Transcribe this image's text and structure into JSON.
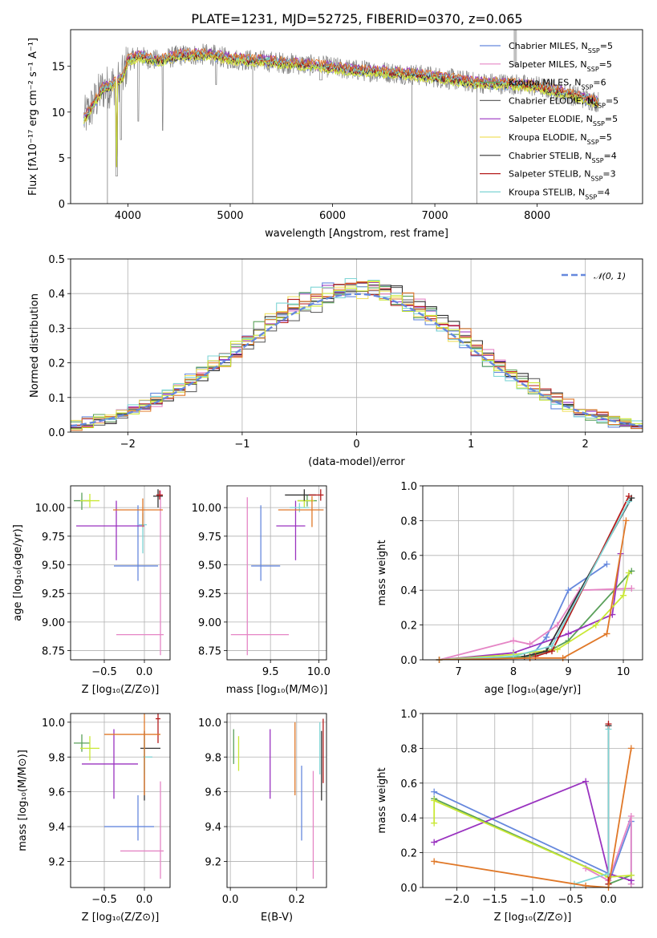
{
  "figure_title": "PLATE=1231, MJD=52725, FIBERID=0370, z=0.065",
  "colors": [
    "#6688dd",
    "#e585c5",
    "#5aa05a",
    "#666666",
    "#9a33c0",
    "#f0e060",
    "#333333",
    "#b51b1b",
    "#7fd5d5",
    "#e07828",
    "#c9e835"
  ],
  "chart_data": [
    {
      "id": "spectrum",
      "type": "line",
      "xlabel": "wavelength [Angstrom, rest frame]",
      "ylabel": "Flux [fλ10⁻¹⁷ erg cm⁻² s⁻¹ A⁻¹]",
      "xlim": [
        3440,
        9030
      ],
      "ylim": [
        0,
        19
      ],
      "xticks": [
        4000,
        5000,
        6000,
        7000,
        8000
      ],
      "yticks": [
        0,
        5,
        10,
        15
      ],
      "grid": false,
      "legend_position": "right",
      "legend": [
        {
          "label": "Chabrier MILES, N",
          "sub": "SSP",
          "tail": "=5",
          "color": "#6688dd"
        },
        {
          "label": "Salpeter MILES, N",
          "sub": "SSP",
          "tail": "=5",
          "color": "#e585c5"
        },
        {
          "label": "Kroupa MILES, N",
          "sub": "SSP",
          "tail": "=6",
          "color": "#5aa05a"
        },
        {
          "label": "Chabrier ELODIE, N",
          "sub": "SSP",
          "tail": "=5",
          "color": "#666666"
        },
        {
          "label": "Salpeter ELODIE, N",
          "sub": "SSP",
          "tail": "=5",
          "color": "#9a33c0"
        },
        {
          "label": "Kroupa ELODIE, N",
          "sub": "SSP",
          "tail": "=5",
          "color": "#f0e060"
        },
        {
          "label": "Chabrier STELIB, N",
          "sub": "SSP",
          "tail": "=4",
          "color": "#333333"
        },
        {
          "label": "Salpeter STELIB, N",
          "sub": "SSP",
          "tail": "=3",
          "color": "#b51b1b"
        },
        {
          "label": "Kroupa STELIB, N",
          "sub": "SSP",
          "tail": "=4",
          "color": "#7fd5d5"
        }
      ],
      "continuum": [
        [
          3570,
          9.2
        ],
        [
          3650,
          10.6
        ],
        [
          3750,
          12.5
        ],
        [
          3850,
          13.0
        ],
        [
          3950,
          13.8
        ],
        [
          4000,
          15.6
        ],
        [
          4100,
          16.1
        ],
        [
          4300,
          15.6
        ],
        [
          4500,
          16.2
        ],
        [
          4800,
          16.3
        ],
        [
          5000,
          15.8
        ],
        [
          5300,
          15.6
        ],
        [
          5600,
          15.3
        ],
        [
          5900,
          15.0
        ],
        [
          6200,
          14.6
        ],
        [
          6500,
          14.4
        ],
        [
          6800,
          14.1
        ],
        [
          7100,
          13.7
        ],
        [
          7400,
          13.2
        ],
        [
          7700,
          13.1
        ],
        [
          8000,
          12.8
        ],
        [
          8300,
          12.0
        ],
        [
          8600,
          11.1
        ]
      ]
    },
    {
      "id": "residual-histogram",
      "type": "histogram",
      "xlabel": "(data-model)/error",
      "ylabel": "Normed distribution",
      "xlim": [
        -2.5,
        2.5
      ],
      "ylim": [
        0,
        0.5
      ],
      "xticks": [
        -2,
        -1,
        0,
        1,
        2
      ],
      "yticks": [
        0.0,
        0.1,
        0.2,
        0.3,
        0.4,
        0.5
      ],
      "grid": true,
      "legend": [
        {
          "label": "𝒩(0, 1)",
          "color": "#6688dd",
          "style": "dashed"
        }
      ],
      "legend_position": "top-right",
      "bin_width": 0.1
    },
    {
      "id": "age-vs-Z",
      "type": "errorbar",
      "xlabel": "Z [log₁₀(Z/Z⊙)]",
      "ylabel": "age  [log₁₀(age/yr)]",
      "xlim": [
        -0.92,
        0.32
      ],
      "ylim": [
        8.67,
        10.19
      ],
      "xticks": [
        -0.5,
        0.0
      ],
      "yticks": [
        8.75,
        9.0,
        9.25,
        9.5,
        9.75,
        10.0
      ],
      "grid": true,
      "points": [
        {
          "color": "#6688dd",
          "x": -0.08,
          "xerr": [
            0.3,
            0.25
          ],
          "y": 9.49,
          "yerr": [
            0.13,
            0.53
          ]
        },
        {
          "color": "#e585c5",
          "x": 0.2,
          "xerr": [
            0.55,
            0.04
          ],
          "y": 8.89,
          "yerr": [
            0.18,
            1.26
          ]
        },
        {
          "color": "#5aa05a",
          "x": -0.78,
          "xerr": [
            0.1,
            0.1
          ],
          "y": 10.06,
          "yerr": [
            0.08,
            0.07
          ]
        },
        {
          "color": "#9a33c0",
          "x": -0.35,
          "xerr": [
            0.5,
            0.35
          ],
          "y": 9.84,
          "yerr": [
            0.3,
            0.22
          ]
        },
        {
          "color": "#c9e835",
          "x": -0.68,
          "xerr": [
            0.12,
            0.12
          ],
          "y": 10.06,
          "yerr": [
            0.06,
            0.06
          ]
        },
        {
          "color": "#333333",
          "x": 0.17,
          "xerr": [
            0.06,
            0.06
          ],
          "y": 10.1,
          "yerr": [
            0.1,
            0.06
          ]
        },
        {
          "color": "#b51b1b",
          "x": 0.19,
          "xerr": [
            0.04,
            0.04
          ],
          "y": 10.11,
          "yerr": [
            0.04,
            0.04
          ]
        },
        {
          "color": "#7fd5d5",
          "x": -0.02,
          "xerr": [
            0.05,
            0.05
          ],
          "y": 9.85,
          "yerr": [
            0.25,
            0.1
          ]
        },
        {
          "color": "#e07828",
          "x": -0.02,
          "xerr": [
            0.37,
            0.25
          ],
          "y": 9.98,
          "yerr": [
            0.15,
            0.1
          ]
        }
      ]
    },
    {
      "id": "age-vs-mass",
      "type": "errorbar",
      "xlabel": "mass [log₁₀(M/M⊙)]",
      "ylabel": "",
      "xlim": [
        9.05,
        10.08
      ],
      "ylim": [
        8.67,
        10.19
      ],
      "xticks": [
        9.5,
        10.0
      ],
      "yticks": [
        8.75,
        9.0,
        9.25,
        9.5,
        9.75,
        10.0
      ],
      "grid": true,
      "points": [
        {
          "color": "#6688dd",
          "x": 9.4,
          "xerr": [
            0.1,
            0.2
          ],
          "y": 9.49,
          "yerr": [
            0.13,
            0.53
          ]
        },
        {
          "color": "#e585c5",
          "x": 9.26,
          "xerr": [
            0.17,
            0.43
          ],
          "y": 8.89,
          "yerr": [
            0.18,
            1.2
          ]
        },
        {
          "color": "#5aa05a",
          "x": 9.88,
          "xerr": [
            0.1,
            0.1
          ],
          "y": 10.06,
          "yerr": [
            0.05,
            0.05
          ]
        },
        {
          "color": "#9a33c0",
          "x": 9.76,
          "xerr": [
            0.2,
            0.1
          ],
          "y": 9.84,
          "yerr": [
            0.3,
            0.22
          ]
        },
        {
          "color": "#c9e835",
          "x": 9.85,
          "xerr": [
            0.07,
            0.1
          ],
          "y": 10.06,
          "yerr": [
            0.06,
            0.06
          ]
        },
        {
          "color": "#333333",
          "x": 9.85,
          "xerr": [
            0.2,
            0.12
          ],
          "y": 10.11,
          "yerr": [
            0.05,
            0.05
          ]
        },
        {
          "color": "#b51b1b",
          "x": 10.02,
          "xerr": [
            0.12,
            0.03
          ],
          "y": 10.11,
          "yerr": [
            0.05,
            0.05
          ]
        },
        {
          "color": "#7fd5d5",
          "x": 9.8,
          "xerr": [
            0.1,
            0.1
          ],
          "y": 10.0,
          "yerr": [
            0.04,
            0.04
          ]
        },
        {
          "color": "#e07828",
          "x": 9.93,
          "xerr": [
            0.35,
            0.12
          ],
          "y": 9.98,
          "yerr": [
            0.15,
            0.12
          ]
        }
      ]
    },
    {
      "id": "mass-weight-vs-age",
      "type": "line",
      "xlabel": "age  [log₁₀(age/yr)]",
      "ylabel": "mass weight",
      "xlim": [
        6.35,
        10.35
      ],
      "ylim": [
        0,
        1.0
      ],
      "xticks": [
        7,
        8,
        9,
        10
      ],
      "yticks": [
        0.0,
        0.2,
        0.4,
        0.6,
        0.8,
        1.0
      ],
      "grid": true,
      "series": [
        {
          "color": "#6688dd",
          "x": [
            6.65,
            8.3,
            8.6,
            9.0,
            9.7
          ],
          "y": [
            0.0,
            0.01,
            0.13,
            0.4,
            0.55
          ]
        },
        {
          "color": "#e585c5",
          "x": 6.65,
          "xs": [
            6.65,
            8.0,
            8.3,
            8.8,
            9.2,
            10.15
          ],
          "y": [
            0.0,
            0.11,
            0.09,
            0.2,
            0.4,
            0.41
          ]
        },
        {
          "color": "#5aa05a",
          "x": [
            6.65,
            8.3,
            8.7,
            9.0,
            10.15
          ],
          "y": [
            0.0,
            0.02,
            0.06,
            0.11,
            0.51
          ]
        },
        {
          "color": "#9a33c0",
          "x": [
            6.65,
            8.0,
            9.0,
            9.8,
            9.95
          ],
          "y": [
            0.0,
            0.04,
            0.15,
            0.26,
            0.61
          ]
        },
        {
          "color": "#c9e835",
          "x": [
            6.65,
            8.0,
            8.8,
            9.5,
            10.0,
            10.1
          ],
          "y": [
            0.0,
            0.03,
            0.06,
            0.2,
            0.37,
            0.5
          ]
        },
        {
          "color": "#333333",
          "x": [
            8.2,
            8.6,
            10.15
          ],
          "y": [
            0.02,
            0.05,
            0.93
          ]
        },
        {
          "color": "#b51b1b",
          "x": [
            8.4,
            8.7,
            10.1
          ],
          "y": [
            0.02,
            0.05,
            0.94
          ]
        },
        {
          "color": "#7fd5d5",
          "x": [
            6.65,
            8.0,
            8.7,
            10.1
          ],
          "y": [
            0.0,
            0.02,
            0.08,
            0.91
          ]
        },
        {
          "color": "#e07828",
          "x": [
            6.65,
            8.3,
            8.9,
            9.7,
            10.05
          ],
          "y": [
            0.0,
            0.01,
            0.01,
            0.15,
            0.8
          ]
        }
      ]
    },
    {
      "id": "mass-vs-Z",
      "type": "errorbar",
      "xlabel": "Z [log₁₀(Z/Z⊙)]",
      "ylabel": "mass [log₁₀(M/M⊙)]",
      "xlim": [
        -0.92,
        0.32
      ],
      "ylim": [
        9.05,
        10.05
      ],
      "xticks": [
        -0.5,
        0.0
      ],
      "yticks": [
        9.2,
        9.4,
        9.6,
        9.8,
        10.0
      ],
      "grid": true,
      "points": [
        {
          "color": "#6688dd",
          "x": -0.08,
          "xerr": [
            0.42,
            0.2
          ],
          "y": 9.4,
          "yerr": [
            0.08,
            0.18
          ]
        },
        {
          "color": "#e585c5",
          "x": 0.2,
          "xerr": [
            0.5,
            0.04
          ],
          "y": 9.26,
          "yerr": [
            0.16,
            0.4
          ]
        },
        {
          "color": "#5aa05a",
          "x": -0.78,
          "xerr": [
            0.1,
            0.1
          ],
          "y": 9.88,
          "yerr": [
            0.05,
            0.05
          ]
        },
        {
          "color": "#9a33c0",
          "x": -0.38,
          "xerr": [
            0.4,
            0.3
          ],
          "y": 9.76,
          "yerr": [
            0.2,
            0.2
          ]
        },
        {
          "color": "#c9e835",
          "x": -0.68,
          "xerr": [
            0.12,
            0.12
          ],
          "y": 9.85,
          "yerr": [
            0.07,
            0.07
          ]
        },
        {
          "color": "#333333",
          "x": 0.0,
          "xerr": [
            0.05,
            0.2
          ],
          "y": 9.85,
          "yerr": [
            0.3,
            0.1
          ]
        },
        {
          "color": "#b51b1b",
          "x": 0.17,
          "xerr": [
            0.03,
            0.03
          ],
          "y": 10.02,
          "yerr": [
            0.14,
            0.1
          ]
        },
        {
          "color": "#7fd5d5",
          "x": 0.0,
          "xerr": [
            0.02,
            0.1
          ],
          "y": 9.8,
          "yerr": [
            0.1,
            0.1
          ]
        },
        {
          "color": "#e07828",
          "x": -0.0,
          "xerr": [
            0.5,
            0.2
          ],
          "y": 9.93,
          "yerr": [
            0.35,
            0.12
          ]
        }
      ]
    },
    {
      "id": "mass-vs-EBV",
      "type": "errorbar",
      "xlabel": "E(B-V)",
      "ylabel": "",
      "xlim": [
        -0.01,
        0.29
      ],
      "ylim": [
        9.05,
        10.05
      ],
      "xticks": [
        0.0,
        0.2
      ],
      "yticks": [
        9.2,
        9.4,
        9.6,
        9.8,
        10.0
      ],
      "grid": true,
      "points": [
        {
          "color": "#6688dd",
          "x": 0.215,
          "y": 9.4,
          "yerr": [
            0.08,
            0.35
          ]
        },
        {
          "color": "#e585c5",
          "x": 0.25,
          "y": 9.26,
          "yerr": [
            0.16,
            0.46
          ]
        },
        {
          "color": "#5aa05a",
          "x": 0.01,
          "y": 9.86,
          "yerr": [
            0.1,
            0.1
          ]
        },
        {
          "color": "#9a33c0",
          "x": 0.12,
          "y": 9.76,
          "yerr": [
            0.2,
            0.2
          ]
        },
        {
          "color": "#c9e835",
          "x": 0.025,
          "y": 9.82,
          "yerr": [
            0.1,
            0.1
          ]
        },
        {
          "color": "#333333",
          "x": 0.275,
          "y": 9.85,
          "yerr": [
            0.3,
            0.1
          ]
        },
        {
          "color": "#b51b1b",
          "x": 0.28,
          "y": 9.95,
          "yerr": [
            0.3,
            0.07
          ]
        },
        {
          "color": "#7fd5d5",
          "x": 0.27,
          "y": 9.9,
          "yerr": [
            0.2,
            0.1
          ]
        },
        {
          "color": "#e07828",
          "x": 0.195,
          "y": 9.8,
          "yerr": [
            0.22,
            0.2
          ]
        }
      ]
    },
    {
      "id": "mass-weight-vs-Z",
      "type": "line",
      "xlabel": "Z [log₁₀(Z/Z⊙)]",
      "ylabel": "mass weight",
      "xlim": [
        -2.45,
        0.45
      ],
      "ylim": [
        0,
        1.0
      ],
      "xticks": [
        -2.0,
        -1.5,
        -1.0,
        -0.5,
        0.0
      ],
      "yticks": [
        0.0,
        0.2,
        0.4,
        0.6,
        0.8,
        1.0
      ],
      "grid": true,
      "series": [
        {
          "color": "#6688dd",
          "x": [
            -2.3,
            0.0,
            0.0,
            0.3,
            0.3
          ],
          "y": [
            0.55,
            0.08,
            0.02,
            0.38,
            0.02
          ]
        },
        {
          "color": "#e585c5",
          "x": [
            -0.3,
            0.0,
            0.3,
            0.3
          ],
          "y": [
            0.11,
            0.04,
            0.41,
            0.02
          ]
        },
        {
          "color": "#5aa05a",
          "x": [
            -2.3,
            0.0,
            0.0,
            0.3
          ],
          "y": [
            0.51,
            0.06,
            0.02,
            0.07
          ]
        },
        {
          "color": "#9a33c0",
          "x": [
            -2.3,
            -0.3,
            0.0,
            0.3
          ],
          "y": [
            0.26,
            0.61,
            0.08,
            0.04
          ]
        },
        {
          "color": "#c9e835",
          "x": [
            -2.3,
            -2.3,
            0.0,
            0.3
          ],
          "y": [
            0.37,
            0.5,
            0.06,
            0.07
          ]
        },
        {
          "color": "#333333",
          "x": [
            0.0,
            0.0
          ],
          "y": [
            0.93,
            0.02
          ]
        },
        {
          "color": "#b51b1b",
          "x": [
            0.0,
            0.0
          ],
          "y": [
            0.94,
            0.02
          ]
        },
        {
          "color": "#7fd5d5",
          "x": [
            -0.45,
            0.0,
            0.0
          ],
          "y": [
            0.02,
            0.08,
            0.91
          ]
        },
        {
          "color": "#e07828",
          "x": [
            -2.3,
            -0.3,
            0.0,
            0.3
          ],
          "y": [
            0.15,
            0.01,
            0.0,
            0.8
          ]
        }
      ]
    }
  ]
}
